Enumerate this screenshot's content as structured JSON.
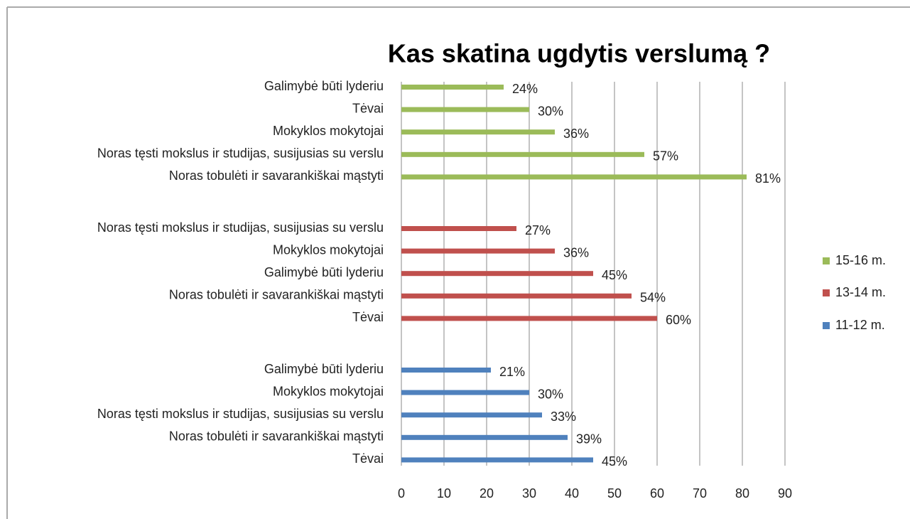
{
  "chart_data": {
    "type": "bar",
    "orientation": "horizontal",
    "title": "Kas skatina ugdytis verslumą ?",
    "series": [
      {
        "name": "15-16 m.",
        "color": "#9bbb59",
        "categories": [
          "Galimybė būti lyderiu",
          "Tėvai",
          "Mokyklos mokytojai",
          "Noras tęsti mokslus ir studijas, susijusias su verslu",
          "Noras tobulėti ir savarankiškai mąstyti"
        ],
        "values": [
          24,
          30,
          36,
          57,
          81
        ],
        "value_labels": [
          "24%",
          "30%",
          "36%",
          "57%",
          "81%"
        ]
      },
      {
        "name": "13-14 m.",
        "color": "#c0504d",
        "categories": [
          "Noras tęsti mokslus ir studijas, susijusias su verslu",
          "Mokyklos mokytojai",
          "Galimybė būti lyderiu",
          "Noras tobulėti ir savarankiškai mąstyti",
          "Tėvai"
        ],
        "values": [
          27,
          36,
          45,
          54,
          60
        ],
        "value_labels": [
          "27%",
          "36%",
          "45%",
          "54%",
          "60%"
        ]
      },
      {
        "name": "11-12 m.",
        "color": "#4f81bd",
        "categories": [
          "Galimybė būti lyderiu",
          "Mokyklos mokytojai",
          "Noras tęsti mokslus ir studijas, susijusias su verslu",
          "Noras tobulėti ir savarankiškai mąstyti",
          "Tėvai"
        ],
        "values": [
          21,
          30,
          33,
          39,
          45
        ],
        "value_labels": [
          "21%",
          "30%",
          "33%",
          "39%",
          "45%"
        ]
      }
    ],
    "xlim": [
      0,
      90
    ],
    "xticks": [
      0,
      10,
      20,
      30,
      40,
      50,
      60,
      70,
      80,
      90
    ],
    "grid": true,
    "legend": "right"
  }
}
